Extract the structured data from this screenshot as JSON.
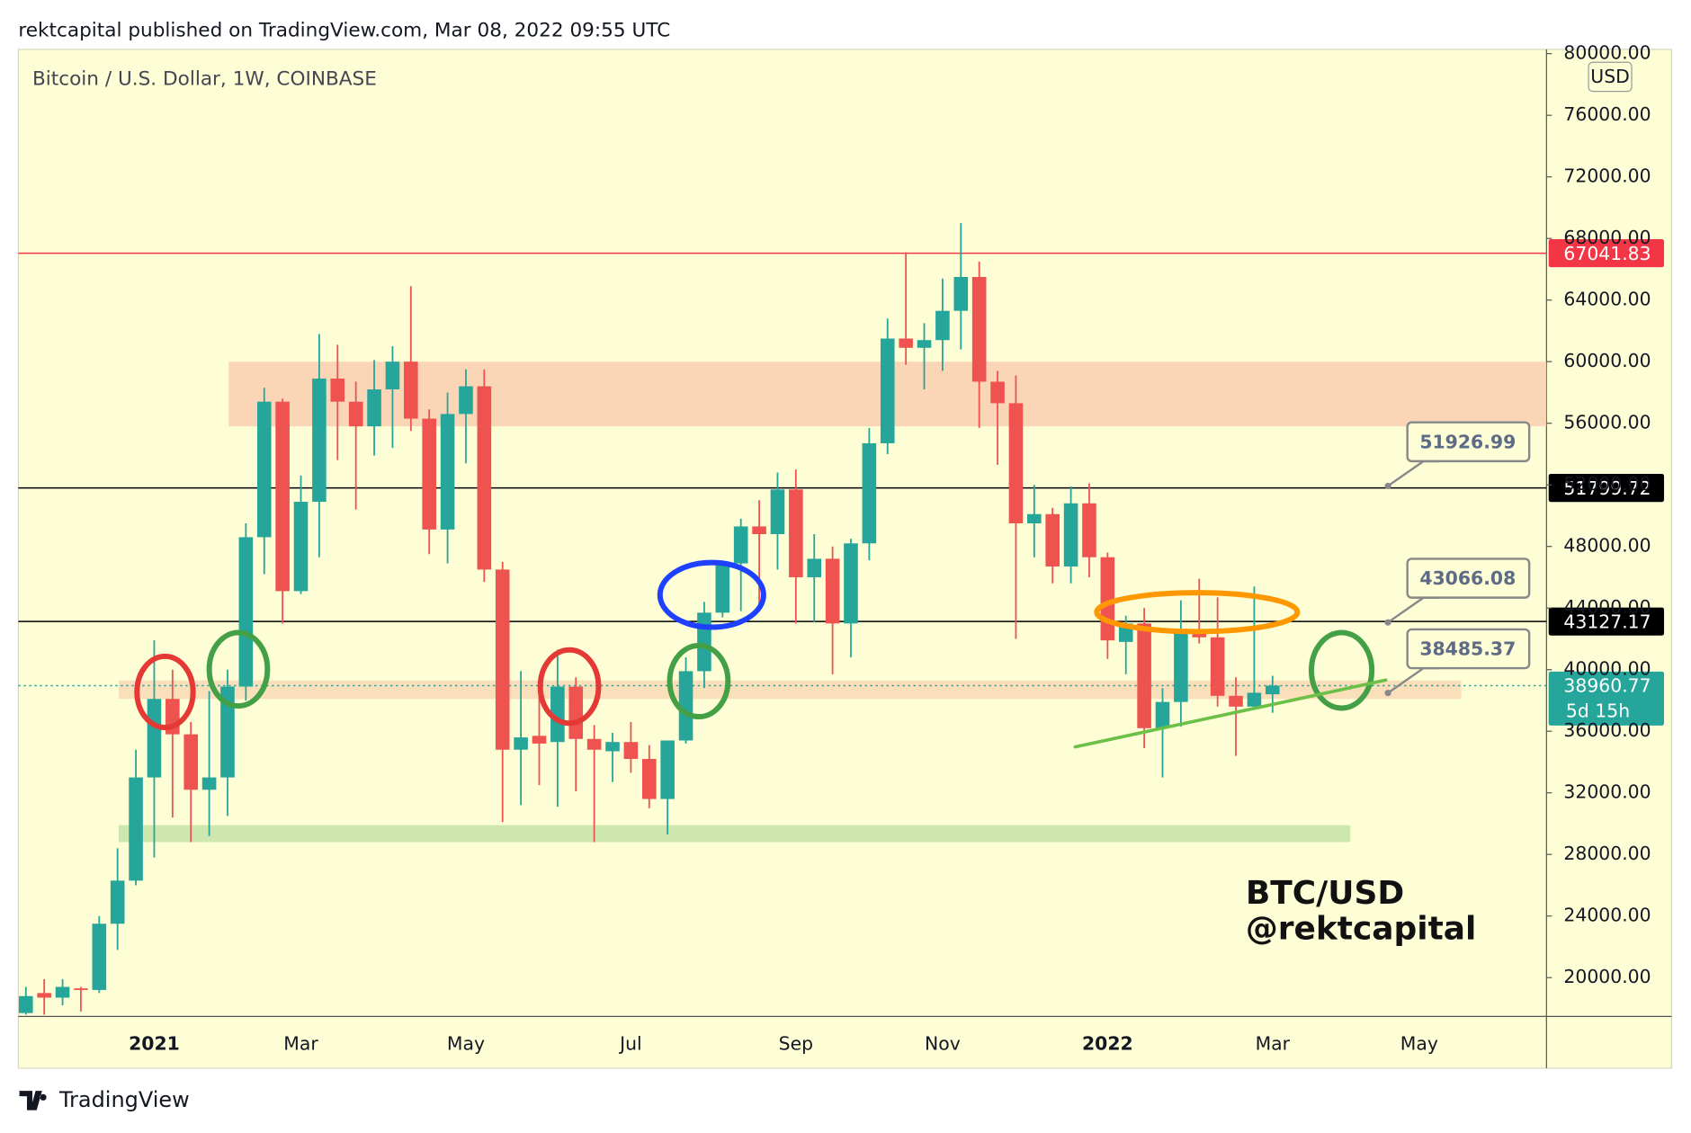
{
  "header": {
    "published": "rektcapital published on TradingView.com, Mar 08, 2022 09:55 UTC",
    "currency": "USD",
    "watermark": [
      "BTC/USD",
      "@rektcapital"
    ],
    "brand": "TradingView"
  },
  "chart_data": {
    "type": "candlestick",
    "title": "Bitcoin / U.S. Dollar, 1W, COINBASE",
    "categories": [
      null,
      null,
      null,
      null,
      null,
      null,
      null,
      "2021",
      null,
      null,
      null,
      null,
      null,
      null,
      null,
      "Mar",
      null,
      null,
      null,
      null,
      null,
      null,
      null,
      null,
      "May",
      null,
      null,
      null,
      null,
      null,
      null,
      null,
      null,
      "Jul",
      null,
      null,
      null,
      null,
      null,
      null,
      null,
      null,
      "Sep",
      null,
      null,
      null,
      null,
      null,
      null,
      null,
      "Nov",
      null,
      null,
      null,
      null,
      null,
      null,
      null,
      null,
      "2022",
      null,
      null,
      null,
      null,
      null,
      null,
      null,
      null,
      "Mar",
      null,
      null,
      null,
      null,
      null,
      null,
      null,
      "May",
      null,
      null,
      null,
      null,
      null,
      null
    ],
    "open": [
      17700,
      19000,
      18700,
      19300,
      19200,
      23500,
      26300,
      33000,
      38100,
      35800,
      32200,
      33000,
      38900,
      48600,
      57400,
      45100,
      50900,
      58900,
      57400,
      55800,
      58200,
      60000,
      56300,
      49100,
      56600,
      58400,
      46500,
      34800,
      35700,
      35300,
      38900,
      35500,
      34700,
      35300,
      34200,
      31600,
      35400,
      39900,
      43700,
      46900,
      49300,
      48800,
      51700,
      46000,
      47200,
      43000,
      48200,
      54700,
      61500,
      60900,
      61400,
      63300,
      65500,
      58700,
      57300,
      49500,
      50100,
      46700,
      50800,
      47300,
      41800,
      43000,
      36200,
      37900,
      42500,
      42100,
      38300,
      37600,
      38400,
      null,
      null,
      null,
      null,
      null,
      null,
      null,
      null,
      null,
      null,
      null,
      null,
      null,
      null
    ],
    "high": [
      19400,
      19900,
      19900,
      19400,
      24000,
      28400,
      34800,
      41900,
      40000,
      36600,
      38600,
      40000,
      49500,
      58300,
      57600,
      52600,
      61800,
      61100,
      58700,
      60100,
      61000,
      64900,
      56900,
      58000,
      59500,
      59500,
      47000,
      39900,
      39500,
      41300,
      39500,
      36400,
      35900,
      36600,
      35100,
      35300,
      40800,
      44400,
      47000,
      49800,
      51000,
      52800,
      53000,
      48800,
      48000,
      48500,
      55700,
      62800,
      67100,
      62500,
      65400,
      69000,
      66500,
      59400,
      59100,
      52000,
      50500,
      51900,
      52100,
      47600,
      43500,
      44000,
      38800,
      44500,
      45900,
      44700,
      39500,
      45400,
      39600,
      null,
      null,
      null,
      null,
      null,
      null,
      null,
      null,
      null,
      null,
      null,
      null,
      null,
      null
    ],
    "low": [
      17600,
      17600,
      18200,
      17800,
      19000,
      21800,
      26000,
      27800,
      30400,
      28800,
      29200,
      30500,
      38000,
      46200,
      43000,
      44900,
      47300,
      53600,
      50400,
      53900,
      54400,
      55500,
      47500,
      46900,
      53400,
      45700,
      30100,
      31200,
      32500,
      31100,
      32100,
      28800,
      32700,
      33300,
      31000,
      29300,
      35200,
      38800,
      43400,
      43800,
      44000,
      46500,
      43000,
      43100,
      39700,
      40800,
      47100,
      54000,
      59800,
      58200,
      59400,
      60800,
      55700,
      53300,
      42000,
      47300,
      45600,
      45600,
      46000,
      40700,
      39700,
      34900,
      33000,
      36300,
      41700,
      37600,
      34400,
      37400,
      37200,
      null,
      null,
      null,
      null,
      null,
      null,
      null,
      null,
      null,
      null,
      null,
      null,
      null,
      null
    ],
    "close": [
      18800,
      18700,
      19400,
      19200,
      23500,
      26300,
      33000,
      38100,
      35800,
      32200,
      33000,
      38900,
      48600,
      57400,
      45100,
      50900,
      58900,
      57400,
      55800,
      58200,
      60000,
      56300,
      49100,
      56600,
      58400,
      46500,
      34800,
      35600,
      35200,
      38900,
      35500,
      34800,
      35300,
      34200,
      31600,
      35400,
      39900,
      43700,
      46900,
      49300,
      48800,
      51700,
      46000,
      47200,
      43000,
      48200,
      54700,
      61500,
      60900,
      61400,
      63300,
      65500,
      58700,
      57300,
      49500,
      50100,
      46700,
      50800,
      47300,
      41900,
      43000,
      36200,
      37900,
      42500,
      42100,
      38300,
      37600,
      38500,
      38960.77,
      null,
      null,
      null,
      null,
      null,
      null,
      null,
      null,
      null,
      null,
      null,
      null,
      null,
      null
    ],
    "up_color": "#26a69a",
    "down_color": "#ef5350",
    "ylim": [
      17480,
      80280
    ],
    "yticks": [
      {
        "value": 20000,
        "label": "20000.00"
      },
      {
        "value": 24000,
        "label": "24000.00"
      },
      {
        "value": 28000,
        "label": "28000.00"
      },
      {
        "value": 32000,
        "label": "32000.00"
      },
      {
        "value": 36000,
        "label": "36000.00"
      },
      {
        "value": 40000,
        "label": "40000.00"
      },
      {
        "value": 44000,
        "label": "44000.00"
      },
      {
        "value": 48000,
        "label": "48000.00"
      },
      {
        "value": 52000,
        "label": "52000.00"
      },
      {
        "value": 56000,
        "label": "56000.00"
      },
      {
        "value": 60000,
        "label": "60000.00"
      },
      {
        "value": 64000,
        "label": "64000.00"
      },
      {
        "value": 68000,
        "label": "68000.00"
      },
      {
        "value": 72000,
        "label": "72000.00"
      },
      {
        "value": 76000,
        "label": "76000.00"
      },
      {
        "value": 80000,
        "label": "80000.00"
      }
    ],
    "zones": [
      {
        "ylim": [
          55800,
          60000
        ],
        "color": "#f9cfb2"
      },
      {
        "ylim": [
          38100,
          39300
        ],
        "color": "#f9d9b6"
      },
      {
        "ylim": [
          28800,
          29900
        ],
        "color": "#c5e3a8"
      }
    ],
    "levels": [
      {
        "value": 67041.83,
        "color": "#f23645"
      },
      {
        "value": 51799.72,
        "color": "#000000"
      },
      {
        "value": 43127.17,
        "color": "#000000"
      }
    ],
    "current": {
      "value": 38960.77,
      "countdown": "5d 15h",
      "color": "#26a69a"
    },
    "callouts": [
      51926.99,
      43066.08,
      38485.37
    ]
  }
}
